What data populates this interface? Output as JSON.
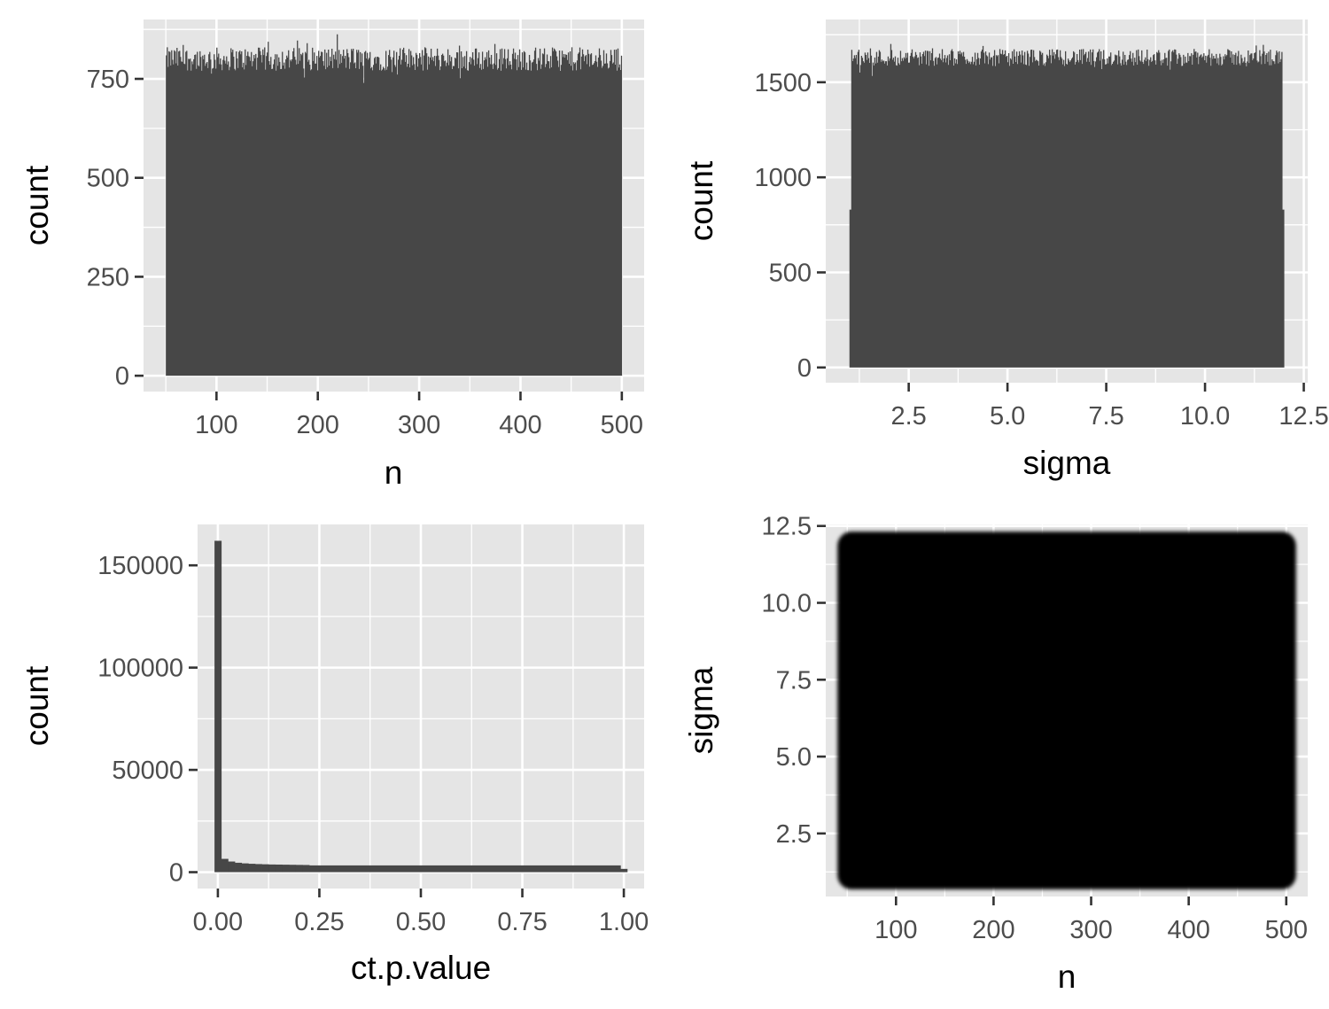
{
  "colors": {
    "panel_bg": "#e5e5e5",
    "grid": "#ffffff",
    "bar_fill": "#474747",
    "point_fill": "#000000",
    "tick_text": "#4d4d4d"
  },
  "chart_data": [
    {
      "id": "hist_n",
      "type": "bar",
      "subtype": "histogram",
      "xlabel": "n",
      "ylabel": "count",
      "xlim": [
        28,
        522
      ],
      "ylim": [
        -40,
        900
      ],
      "x_ticks": [
        100,
        200,
        300,
        400,
        500
      ],
      "x_tick_labels": [
        "100",
        "200",
        "300",
        "400",
        "500"
      ],
      "y_ticks": [
        0,
        250,
        500,
        750
      ],
      "y_tick_labels": [
        "0",
        "250",
        "500",
        "750"
      ],
      "bin_range": [
        50,
        500
      ],
      "typical_count": 800,
      "count_spread": 30,
      "grid": true
    },
    {
      "id": "hist_sigma",
      "type": "bar",
      "subtype": "histogram",
      "xlabel": "sigma",
      "ylabel": "count",
      "xlim": [
        0.4,
        12.6
      ],
      "ylim": [
        -80,
        1830
      ],
      "x_ticks": [
        2.5,
        5.0,
        7.5,
        10.0,
        12.5
      ],
      "x_tick_labels": [
        "2.5",
        "5.0",
        "7.5",
        "10.0",
        "12.5"
      ],
      "y_ticks": [
        0,
        500,
        1000,
        1500
      ],
      "y_tick_labels": [
        "0",
        "500",
        "1000",
        "1500"
      ],
      "bin_range": [
        1,
        12
      ],
      "typical_count": 1630,
      "count_spread": 45,
      "edge_bin_count": 830,
      "grid": true
    },
    {
      "id": "hist_ct_p_value",
      "type": "bar",
      "subtype": "histogram",
      "xlabel": "ct.p.value",
      "ylabel": "count",
      "xlim": [
        -0.05,
        1.05
      ],
      "ylim": [
        -8000,
        170000
      ],
      "x_ticks": [
        0.0,
        0.25,
        0.5,
        0.75,
        1.0
      ],
      "x_tick_labels": [
        "0.00",
        "0.25",
        "0.50",
        "0.75",
        "1.00"
      ],
      "y_ticks": [
        0,
        50000,
        100000,
        150000
      ],
      "y_tick_labels": [
        "0",
        "50000",
        "100000",
        "150000"
      ],
      "bin_width": 0.0167,
      "bins": [
        {
          "x0": -0.0083,
          "x1": 0.0083,
          "count": 162000
        },
        {
          "x0": 0.0083,
          "x1": 0.025,
          "count": 6500
        },
        {
          "x0": 0.025,
          "x1": 0.0417,
          "count": 5200
        },
        {
          "x0": 0.0417,
          "x1": 0.0583,
          "count": 4600
        },
        {
          "x0": 0.0583,
          "x1": 0.075,
          "count": 4300
        },
        {
          "x0": 0.075,
          "x1": 0.0917,
          "count": 4100
        },
        {
          "x0": 0.0917,
          "x1": 0.1083,
          "count": 3950
        },
        {
          "x0": 0.1083,
          "x1": 0.125,
          "count": 3850
        },
        {
          "x0": 0.125,
          "x1": 0.1417,
          "count": 3750
        },
        {
          "x0": 0.1417,
          "x1": 0.1583,
          "count": 3700
        },
        {
          "x0": 0.1583,
          "x1": 0.175,
          "count": 3650
        },
        {
          "x0": 0.175,
          "x1": 0.1917,
          "count": 3600
        },
        {
          "x0": 0.1917,
          "x1": 0.2083,
          "count": 3550
        },
        {
          "x0": 0.2083,
          "x1": 0.225,
          "count": 3500
        }
      ],
      "tail": {
        "x0": 0.225,
        "x1": 0.9917,
        "count": 3300
      },
      "last_bin": {
        "x0": 0.9917,
        "x1": 1.0083,
        "count": 1600
      },
      "grid": true
    },
    {
      "id": "scatter_n_sigma",
      "type": "scatter",
      "xlabel": "n",
      "ylabel": "sigma",
      "xlim": [
        28,
        522
      ],
      "ylim": [
        0.45,
        12.55
      ],
      "x_ticks": [
        100,
        200,
        300,
        400,
        500
      ],
      "x_tick_labels": [
        "100",
        "200",
        "300",
        "400",
        "500"
      ],
      "y_ticks": [
        2.5,
        5.0,
        7.5,
        10.0,
        12.5
      ],
      "y_tick_labels": [
        "2.5",
        "5.0",
        "7.5",
        "10.0",
        "12.5"
      ],
      "point_region": {
        "x": [
          50,
          500
        ],
        "y": [
          1,
          12
        ]
      },
      "grid": true
    }
  ]
}
